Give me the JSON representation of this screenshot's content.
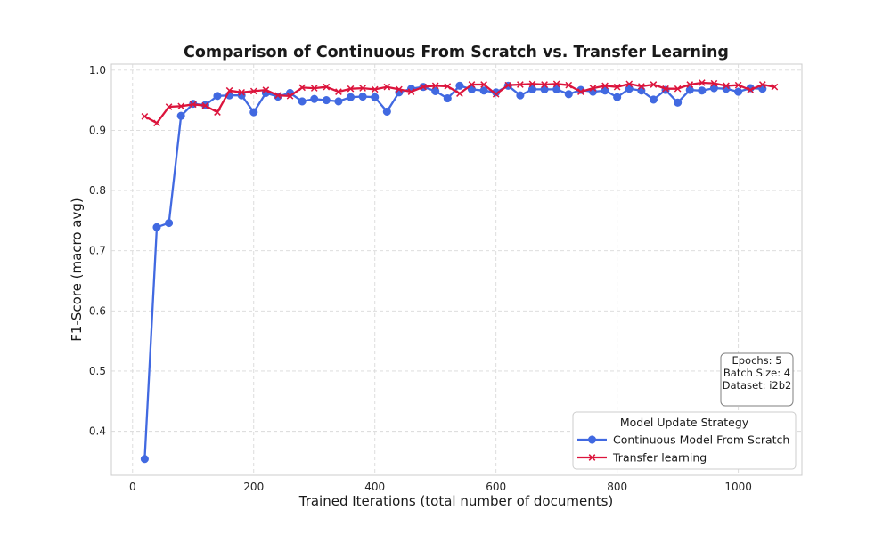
{
  "chart_data": {
    "type": "line",
    "title": "Comparison of Continuous From Scratch vs. Transfer Learning",
    "xlabel": "Trained Iterations (total number of documents)",
    "ylabel": "F1-Score (macro avg)",
    "xlim": [
      -35,
      1105
    ],
    "ylim": [
      0.327,
      1.01
    ],
    "xticks": [
      0,
      200,
      400,
      600,
      800,
      1000
    ],
    "yticks": [
      0.4,
      0.5,
      0.6,
      0.7,
      0.8,
      0.9,
      1.0
    ],
    "xtick_labels": [
      "0",
      "200",
      "400",
      "600",
      "800",
      "1000"
    ],
    "ytick_labels": [
      "0.4",
      "0.5",
      "0.6",
      "0.7",
      "0.8",
      "0.9",
      "1.0"
    ],
    "grid": true,
    "legend": {
      "title": "Model Update Strategy",
      "position": "lower-right"
    },
    "annotation": [
      "Epochs: 5",
      "Batch Size: 4",
      "Dataset: i2b2"
    ],
    "x": [
      20,
      40,
      60,
      80,
      100,
      120,
      140,
      160,
      180,
      200,
      220,
      240,
      260,
      280,
      300,
      320,
      340,
      360,
      380,
      400,
      420,
      440,
      460,
      480,
      500,
      520,
      540,
      560,
      580,
      600,
      620,
      640,
      660,
      680,
      700,
      720,
      740,
      760,
      780,
      800,
      820,
      840,
      860,
      880,
      900,
      920,
      940,
      960,
      980,
      1000,
      1020,
      1040,
      1060
    ],
    "series": [
      {
        "name": "Continuous Model From Scratch",
        "color": "#4169e1",
        "marker": "circle",
        "values": [
          0.354,
          0.739,
          0.746,
          0.924,
          0.944,
          0.942,
          0.957,
          0.958,
          0.958,
          0.93,
          0.962,
          0.956,
          0.962,
          0.948,
          0.952,
          0.95,
          0.948,
          0.955,
          0.956,
          0.955,
          0.931,
          0.963,
          0.969,
          0.972,
          0.965,
          0.953,
          0.974,
          0.968,
          0.966,
          0.963,
          0.974,
          0.958,
          0.968,
          0.968,
          0.968,
          0.96,
          0.967,
          0.964,
          0.966,
          0.955,
          0.969,
          0.966,
          0.951,
          0.967,
          0.946,
          0.967,
          0.966,
          0.97,
          0.969,
          0.964,
          0.97,
          0.969,
          null
        ]
      },
      {
        "name": "Transfer learning",
        "color": "#dc143c",
        "marker": "x",
        "values": [
          0.923,
          0.912,
          0.939,
          0.94,
          0.943,
          0.941,
          0.93,
          0.966,
          0.963,
          0.965,
          0.967,
          0.958,
          0.957,
          0.971,
          0.97,
          0.972,
          0.964,
          0.969,
          0.97,
          0.968,
          0.972,
          0.968,
          0.964,
          0.972,
          0.974,
          0.973,
          0.961,
          0.976,
          0.976,
          0.96,
          0.975,
          0.976,
          0.977,
          0.976,
          0.977,
          0.975,
          0.964,
          0.97,
          0.974,
          0.972,
          0.977,
          0.973,
          0.976,
          0.969,
          0.969,
          0.976,
          0.979,
          0.978,
          0.974,
          0.975,
          0.967,
          0.976,
          0.972
        ]
      }
    ]
  }
}
